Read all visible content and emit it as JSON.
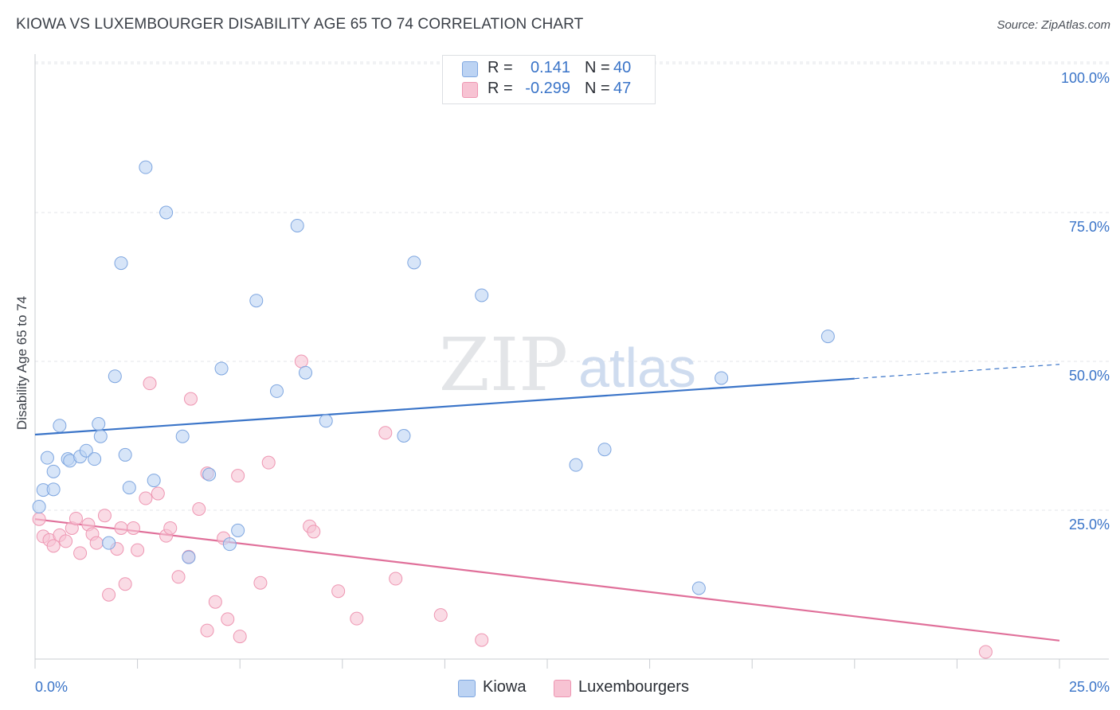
{
  "title": "KIOWA VS LUXEMBOURGER DISABILITY AGE 65 TO 74 CORRELATION CHART",
  "source": "Source: ZipAtlas.com",
  "watermark": {
    "zip": "ZIP",
    "atlas": "atlas"
  },
  "legend": {
    "kiowa": {
      "r_label": "R =",
      "r_value": "0.141",
      "n_label": "N =",
      "n_value": "40"
    },
    "luxembourger": {
      "r_label": "R =",
      "r_value": "-0.299",
      "n_label": "N =",
      "n_value": "47"
    }
  },
  "colors": {
    "kiowa_fill": "#bcd3f3",
    "kiowa_stroke": "#7ea6e0",
    "kiowa_line": "#3a74c8",
    "lux_fill": "#f7c3d3",
    "lux_stroke": "#ee96b2",
    "lux_line": "#e0709a",
    "tick_label": "#3a74c8",
    "grid": "#e3e6ea"
  },
  "chart_data": {
    "type": "scatter",
    "xlabel": "",
    "ylabel": "Disability Age 65 to 74",
    "xlim": [
      0,
      25
    ],
    "ylim": [
      0,
      100
    ],
    "x_tick_labels": [
      "0.0%",
      "25.0%"
    ],
    "y_tick_labels": [
      "100.0%",
      "75.0%",
      "50.0%",
      "25.0%"
    ],
    "y_ticks": [
      100,
      75,
      50,
      25
    ],
    "grid": true,
    "series": [
      {
        "name": "Kiowa",
        "r": 0.141,
        "n": 40,
        "trend": {
          "x0": 0,
          "y0": 37.7,
          "x1": 20,
          "y1": 47.1,
          "dashed_to_x": 25,
          "dashed_to_y": 49.5
        },
        "points": [
          {
            "x": 0.1,
            "y": 25.6
          },
          {
            "x": 0.2,
            "y": 28.4
          },
          {
            "x": 0.3,
            "y": 33.8
          },
          {
            "x": 0.45,
            "y": 31.5
          },
          {
            "x": 0.45,
            "y": 28.5
          },
          {
            "x": 0.6,
            "y": 39.2
          },
          {
            "x": 0.8,
            "y": 33.6
          },
          {
            "x": 0.85,
            "y": 33.3
          },
          {
            "x": 1.1,
            "y": 34.0
          },
          {
            "x": 1.25,
            "y": 35.0
          },
          {
            "x": 1.45,
            "y": 33.6
          },
          {
            "x": 1.6,
            "y": 37.4
          },
          {
            "x": 1.55,
            "y": 39.5
          },
          {
            "x": 1.8,
            "y": 19.5
          },
          {
            "x": 1.95,
            "y": 47.5
          },
          {
            "x": 2.1,
            "y": 66.5
          },
          {
            "x": 2.2,
            "y": 34.3
          },
          {
            "x": 2.3,
            "y": 28.8
          },
          {
            "x": 2.7,
            "y": 82.6
          },
          {
            "x": 2.9,
            "y": 30.0
          },
          {
            "x": 3.2,
            "y": 75.0
          },
          {
            "x": 3.6,
            "y": 37.4
          },
          {
            "x": 3.75,
            "y": 17.1
          },
          {
            "x": 4.25,
            "y": 31.0
          },
          {
            "x": 4.55,
            "y": 48.8
          },
          {
            "x": 4.75,
            "y": 19.3
          },
          {
            "x": 4.95,
            "y": 21.6
          },
          {
            "x": 5.4,
            "y": 60.2
          },
          {
            "x": 5.9,
            "y": 45.0
          },
          {
            "x": 6.4,
            "y": 72.8
          },
          {
            "x": 6.6,
            "y": 48.1
          },
          {
            "x": 7.1,
            "y": 40.0
          },
          {
            "x": 9.0,
            "y": 37.5
          },
          {
            "x": 9.25,
            "y": 66.6
          },
          {
            "x": 10.9,
            "y": 61.1
          },
          {
            "x": 13.2,
            "y": 32.6
          },
          {
            "x": 13.9,
            "y": 35.2
          },
          {
            "x": 16.2,
            "y": 11.9
          },
          {
            "x": 16.75,
            "y": 47.2
          },
          {
            "x": 19.35,
            "y": 54.2
          }
        ]
      },
      {
        "name": "Luxembourgers",
        "r": -0.299,
        "n": 47,
        "trend": {
          "x0": 0,
          "y0": 23.5,
          "x1": 25,
          "y1": 3.1
        },
        "points": [
          {
            "x": 0.1,
            "y": 23.5
          },
          {
            "x": 0.2,
            "y": 20.6
          },
          {
            "x": 0.35,
            "y": 20.0
          },
          {
            "x": 0.45,
            "y": 19.0
          },
          {
            "x": 0.6,
            "y": 20.8
          },
          {
            "x": 0.75,
            "y": 19.8
          },
          {
            "x": 0.9,
            "y": 22.0
          },
          {
            "x": 1.0,
            "y": 23.6
          },
          {
            "x": 1.1,
            "y": 17.8
          },
          {
            "x": 1.3,
            "y": 22.6
          },
          {
            "x": 1.4,
            "y": 21.0
          },
          {
            "x": 1.5,
            "y": 19.5
          },
          {
            "x": 1.7,
            "y": 24.1
          },
          {
            "x": 1.8,
            "y": 10.8
          },
          {
            "x": 2.0,
            "y": 18.5
          },
          {
            "x": 2.1,
            "y": 22.0
          },
          {
            "x": 2.2,
            "y": 12.6
          },
          {
            "x": 2.4,
            "y": 22.0
          },
          {
            "x": 2.5,
            "y": 18.3
          },
          {
            "x": 2.7,
            "y": 27.0
          },
          {
            "x": 2.8,
            "y": 46.3
          },
          {
            "x": 3.0,
            "y": 27.8
          },
          {
            "x": 3.2,
            "y": 20.7
          },
          {
            "x": 3.3,
            "y": 22.0
          },
          {
            "x": 3.5,
            "y": 13.8
          },
          {
            "x": 3.8,
            "y": 43.7
          },
          {
            "x": 4.0,
            "y": 25.2
          },
          {
            "x": 4.2,
            "y": 4.8
          },
          {
            "x": 4.4,
            "y": 9.6
          },
          {
            "x": 4.6,
            "y": 20.3
          },
          {
            "x": 4.7,
            "y": 6.7
          },
          {
            "x": 4.95,
            "y": 30.8
          },
          {
            "x": 5.0,
            "y": 3.8
          },
          {
            "x": 5.5,
            "y": 12.8
          },
          {
            "x": 5.7,
            "y": 33.0
          },
          {
            "x": 6.5,
            "y": 50.0
          },
          {
            "x": 6.7,
            "y": 22.3
          },
          {
            "x": 6.8,
            "y": 21.4
          },
          {
            "x": 7.4,
            "y": 11.4
          },
          {
            "x": 7.85,
            "y": 6.8
          },
          {
            "x": 8.55,
            "y": 38.0
          },
          {
            "x": 8.8,
            "y": 13.5
          },
          {
            "x": 9.9,
            "y": 7.4
          },
          {
            "x": 10.9,
            "y": 3.2
          },
          {
            "x": 23.2,
            "y": 1.2
          },
          {
            "x": 4.2,
            "y": 31.2
          },
          {
            "x": 3.75,
            "y": 17.2
          }
        ]
      }
    ]
  },
  "bottom_legend": {
    "kiowa": "Kiowa",
    "luxembourger": "Luxembourgers"
  }
}
